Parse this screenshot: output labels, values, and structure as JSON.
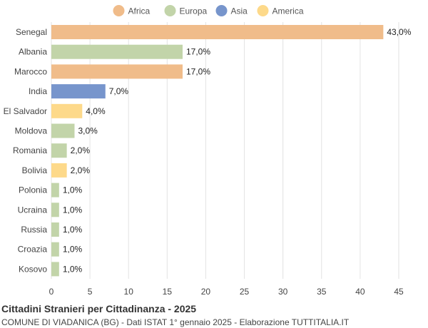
{
  "chart_data": {
    "type": "bar",
    "orientation": "horizontal",
    "title": "Cittadini Stranieri per Cittadinanza - 2025",
    "subtitle": "COMUNE DI VIADANICA (BG) - Dati ISTAT 1° gennaio 2025 - Elaborazione TUTTITALIA.IT",
    "xlim": [
      0,
      45
    ],
    "xticks": [
      0,
      5,
      10,
      15,
      20,
      25,
      30,
      35,
      40,
      45
    ],
    "grid": true,
    "legend_position": "top-center",
    "legend": [
      {
        "name": "Africa",
        "color": "#f0bc8a"
      },
      {
        "name": "Europa",
        "color": "#c2d4a9"
      },
      {
        "name": "Asia",
        "color": "#7795cc"
      },
      {
        "name": "America",
        "color": "#fdd98a"
      }
    ],
    "categories": [
      "Senegal",
      "Albania",
      "Marocco",
      "India",
      "El Salvador",
      "Moldova",
      "Romania",
      "Bolivia",
      "Polonia",
      "Ucraina",
      "Russia",
      "Croazia",
      "Kosovo"
    ],
    "values": [
      43.0,
      17.0,
      17.0,
      7.0,
      4.0,
      3.0,
      2.0,
      2.0,
      1.0,
      1.0,
      1.0,
      1.0,
      1.0
    ],
    "value_labels": [
      "43,0%",
      "17,0%",
      "17,0%",
      "7,0%",
      "4,0%",
      "3,0%",
      "2,0%",
      "2,0%",
      "1,0%",
      "1,0%",
      "1,0%",
      "1,0%",
      "1,0%"
    ],
    "groups": [
      "Africa",
      "Europa",
      "Africa",
      "Asia",
      "America",
      "Europa",
      "Europa",
      "America",
      "Europa",
      "Europa",
      "Europa",
      "Europa",
      "Europa"
    ]
  }
}
